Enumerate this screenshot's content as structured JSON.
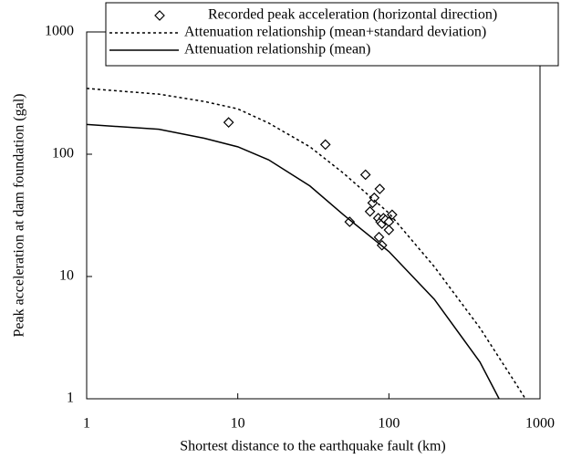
{
  "chart_data": {
    "type": "scatter",
    "x_label": "Shortest distance to the earthquake fault (km)",
    "y_label": "Peak acceleration at dam foundation (gal)",
    "xscale": "log",
    "yscale": "log",
    "xlim": [
      1,
      1000
    ],
    "ylim": [
      1,
      1000
    ],
    "xticks": [
      1,
      10,
      100,
      1000
    ],
    "yticks": [
      1,
      10,
      100,
      1000
    ],
    "series": [
      {
        "name": "Recorded peak acceleration (horizontal direction)",
        "color": "#000000",
        "marker": "diamond",
        "x": [
          8.7,
          38,
          55,
          70,
          78,
          80,
          87,
          75,
          85,
          88,
          90,
          92,
          95,
          100,
          105,
          100,
          86,
          90
        ],
        "values": [
          182,
          120,
          28,
          68,
          40,
          44,
          52,
          34,
          30,
          28,
          27,
          30,
          29,
          28,
          32,
          24,
          21,
          18
        ]
      },
      {
        "name": "Attenuation relationship (mean+standard deviation)",
        "color": "#000000",
        "marker": "dotted",
        "x": [
          1,
          3,
          6,
          10,
          16,
          30,
          50,
          100,
          200,
          400,
          700,
          800
        ],
        "values": [
          345,
          310,
          270,
          235,
          180,
          115,
          70,
          33,
          12,
          3.8,
          1.3,
          1
        ]
      },
      {
        "name": "Attenuation  relationship (mean)",
        "color": "#000000",
        "marker": "solid",
        "x": [
          1,
          3,
          6,
          10,
          16,
          30,
          50,
          100,
          200,
          400,
          536
        ],
        "values": [
          175,
          160,
          135,
          115,
          90,
          55,
          32,
          16,
          6.5,
          2,
          1
        ]
      }
    ]
  }
}
